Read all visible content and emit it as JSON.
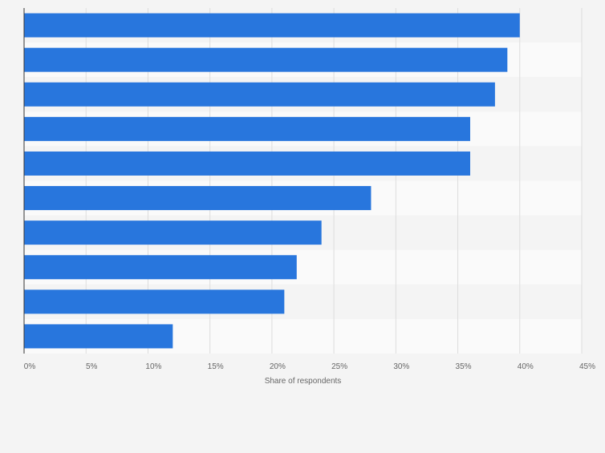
{
  "chart_data": {
    "type": "bar",
    "orientation": "horizontal",
    "categories": [
      "",
      "",
      "",
      "",
      "",
      "",
      "",
      "",
      "",
      ""
    ],
    "values": [
      40,
      39,
      38,
      36,
      36,
      28,
      24,
      22,
      21,
      12
    ],
    "xlim": [
      0,
      45
    ],
    "x_ticks": [
      0,
      5,
      10,
      15,
      20,
      25,
      30,
      35,
      40,
      45
    ],
    "tick_labels": [
      "0%",
      "5%",
      "10%",
      "15%",
      "20%",
      "25%",
      "30%",
      "35%",
      "40%",
      "45%"
    ],
    "xlabel": "Share of respondents",
    "ylabel": "",
    "title": "",
    "grid": true
  },
  "colors": {
    "bar": "#2876dd",
    "background": "#f4f4f4",
    "band_dark": "#f4f4f4",
    "band_light": "#fafafa",
    "grid": "#dddddd",
    "axis": "#333333",
    "tick_text": "#666666"
  }
}
